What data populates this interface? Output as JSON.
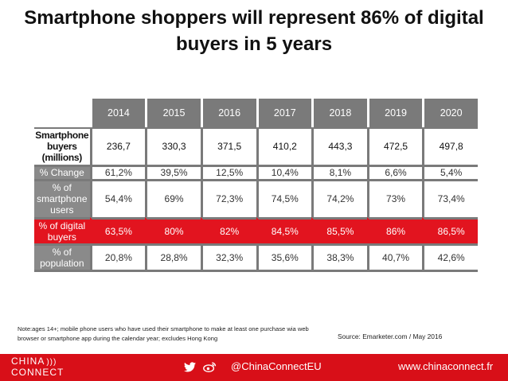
{
  "title_line1": "Smartphone shoppers will represent 86% of digital",
  "title_line2": "buyers in 5 years",
  "chart_data": {
    "type": "table",
    "columns": [
      "2014",
      "2015",
      "2016",
      "2017",
      "2018",
      "2019",
      "2020"
    ],
    "rows": [
      {
        "label": "Smartphone buyers (millions)",
        "values": [
          "236,7",
          "330,3",
          "371,5",
          "410,2",
          "443,3",
          "472,5",
          "497,8"
        ]
      },
      {
        "label": "% Change",
        "values": [
          "61,2%",
          "39,5%",
          "12,5%",
          "10,4%",
          "8,1%",
          "6,6%",
          "5,4%"
        ]
      },
      {
        "label": "% of smartphone users",
        "values": [
          "54,4%",
          "69%",
          "72,3%",
          "74,5%",
          "74,2%",
          "73%",
          "73,4%"
        ]
      },
      {
        "label": "% of digital buyers",
        "values": [
          "63,5%",
          "80%",
          "82%",
          "84,5%",
          "85,5%",
          "86%",
          "86,5%"
        ]
      },
      {
        "label": "% of population",
        "values": [
          "20,8%",
          "28,8%",
          "32,3%",
          "35,6%",
          "38,3%",
          "40,7%",
          "42,6%"
        ]
      }
    ],
    "highlight_row": "% of digital buyers",
    "highlight_color": "#e2141f",
    "header_color": "#7a7a7a"
  },
  "note": "Note:ages 14+; mobile phone users who have used their smartphone to make at least one purchase wia web browser or smartphone app during the calendar year; excludes Hong Kong",
  "source": "Source: Emarketer.com / May 2016",
  "footer": {
    "logo_line1": "CHINA",
    "logo_line2": "CONNECT",
    "twitter_icon": "twitter-icon",
    "weibo_icon": "weibo-icon",
    "handle": "@ChinaConnectEU",
    "website": "www.chinaconnect.fr",
    "color": "#d80f18"
  }
}
